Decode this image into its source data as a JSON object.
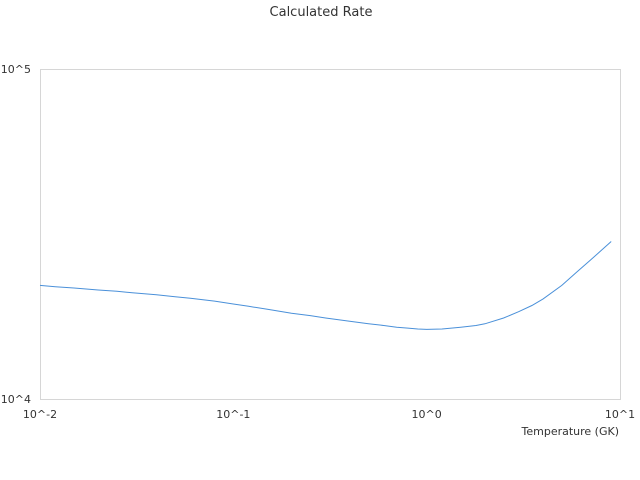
{
  "chart_data": {
    "type": "line",
    "title": "Calculated Rate",
    "xlabel": "Temperature (GK)",
    "ylabel": "",
    "xscale": "log",
    "yscale": "log",
    "xlim": [
      0.01,
      10
    ],
    "ylim": [
      10000,
      100000
    ],
    "x_ticks": [
      "10^-2",
      "10^-1",
      "10^0",
      "10^1"
    ],
    "y_ticks": [
      "10^4",
      "10^5"
    ],
    "grid": false,
    "line_color": "#4a90d9",
    "series": [
      {
        "x": [
          0.01,
          0.012,
          0.015,
          0.02,
          0.025,
          0.03,
          0.04,
          0.05,
          0.06,
          0.08,
          0.1,
          0.12,
          0.15,
          0.2,
          0.25,
          0.3,
          0.4,
          0.5,
          0.6,
          0.7,
          0.8,
          0.9,
          1.0,
          1.2,
          1.5,
          1.8,
          2.0,
          2.5,
          3.0,
          3.5,
          4.0,
          5.0,
          6.0,
          7.0,
          8.0,
          9.0
        ],
        "y": [
          22100,
          21900,
          21700,
          21400,
          21200,
          21000,
          20700,
          20400,
          20200,
          19800,
          19400,
          19100,
          18700,
          18200,
          17900,
          17600,
          17200,
          16900,
          16700,
          16500,
          16400,
          16300,
          16250,
          16300,
          16500,
          16700,
          16900,
          17600,
          18400,
          19200,
          20100,
          22100,
          24300,
          26300,
          28200,
          30000
        ]
      }
    ]
  }
}
